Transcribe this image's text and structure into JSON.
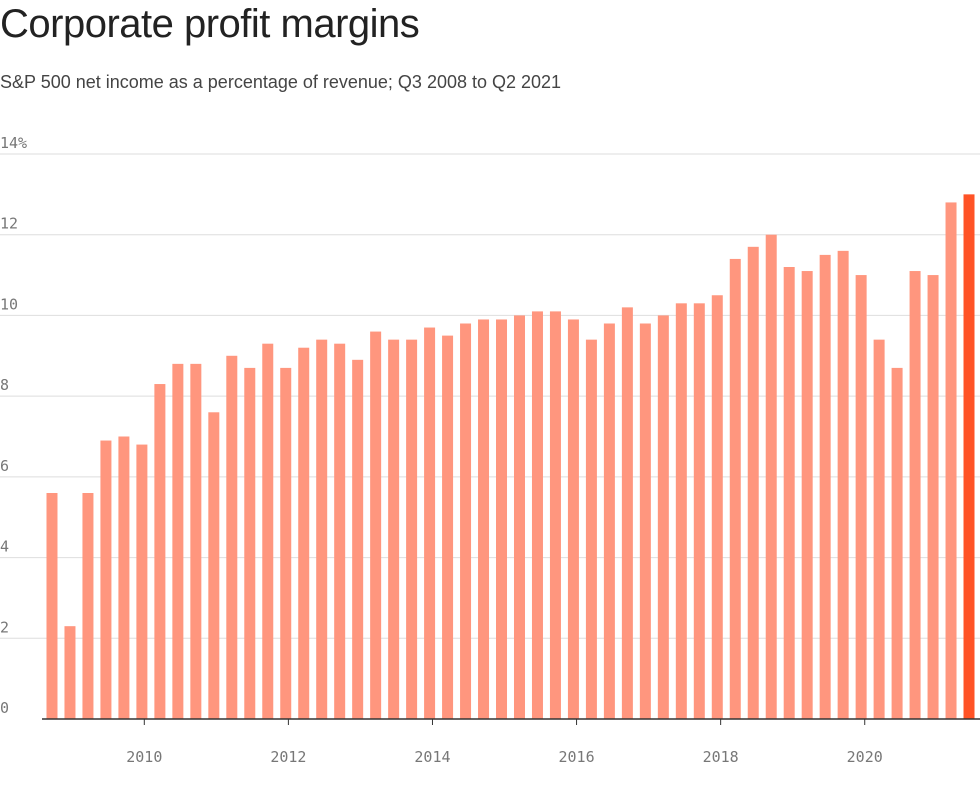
{
  "chart_data": {
    "type": "bar",
    "title": "Corporate profit margins",
    "subtitle": "S&P 500 net income as a percentage of revenue; Q3 2008 to Q2 2021",
    "xlabel": "",
    "ylabel": "",
    "ylim": [
      0,
      14
    ],
    "yticks": [
      0,
      2,
      4,
      6,
      8,
      10,
      12,
      14
    ],
    "ytick_labels": [
      "0",
      "2",
      "4",
      "6",
      "8",
      "10",
      "12",
      "14%"
    ],
    "xlim": [
      2008.58,
      2021.6
    ],
    "xticks": [
      2010,
      2012,
      2014,
      2016,
      2018,
      2020
    ],
    "xtick_labels": [
      "2010",
      "2012",
      "2014",
      "2016",
      "2018",
      "2020"
    ],
    "grid": true,
    "categories": [
      "Q3 2008",
      "Q4 2008",
      "Q1 2009",
      "Q2 2009",
      "Q3 2009",
      "Q4 2009",
      "Q1 2010",
      "Q2 2010",
      "Q3 2010",
      "Q4 2010",
      "Q1 2011",
      "Q2 2011",
      "Q3 2011",
      "Q4 2011",
      "Q1 2012",
      "Q2 2012",
      "Q3 2012",
      "Q4 2012",
      "Q1 2013",
      "Q2 2013",
      "Q3 2013",
      "Q4 2013",
      "Q1 2014",
      "Q2 2014",
      "Q3 2014",
      "Q4 2014",
      "Q1 2015",
      "Q2 2015",
      "Q3 2015",
      "Q4 2015",
      "Q1 2016",
      "Q2 2016",
      "Q3 2016",
      "Q4 2016",
      "Q1 2017",
      "Q2 2017",
      "Q3 2017",
      "Q4 2017",
      "Q1 2018",
      "Q2 2018",
      "Q3 2018",
      "Q4 2018",
      "Q1 2019",
      "Q2 2019",
      "Q3 2019",
      "Q4 2019",
      "Q1 2020",
      "Q2 2020",
      "Q3 2020",
      "Q4 2020",
      "Q1 2021",
      "Q2 2021"
    ],
    "values": [
      5.6,
      2.3,
      5.6,
      6.9,
      7.0,
      6.8,
      8.3,
      8.8,
      8.8,
      7.6,
      9.0,
      8.7,
      9.3,
      8.7,
      9.2,
      9.4,
      9.3,
      8.9,
      9.6,
      9.4,
      9.4,
      9.7,
      9.5,
      9.8,
      9.9,
      9.9,
      10.0,
      10.1,
      10.1,
      9.9,
      9.4,
      9.8,
      10.2,
      9.8,
      10.0,
      10.3,
      10.3,
      10.5,
      11.4,
      11.7,
      12.0,
      11.2,
      11.1,
      11.5,
      11.6,
      11.0,
      9.4,
      8.7,
      11.1,
      11.0,
      12.8,
      13.0
    ],
    "colors": {
      "bar": "#ff967e",
      "highlight": "#ff5326",
      "grid": "#dedede",
      "axis": "#333333"
    },
    "highlight_index": 51
  }
}
